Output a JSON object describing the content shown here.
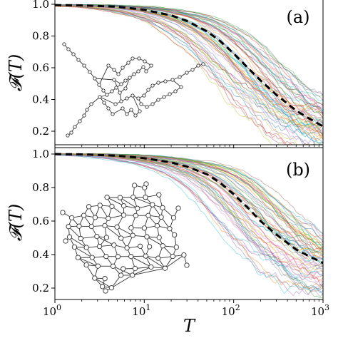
{
  "chart_data": [
    {
      "type": "line",
      "panel_label": "(a)",
      "xlabel": "",
      "ylabel": "𝓕(T)",
      "xscale": "log",
      "xlim": [
        1,
        1000
      ],
      "ylim": [
        0.12,
        1.02
      ],
      "yticks": [
        "0.2",
        "0.4",
        "0.6",
        "0.8",
        "1.0"
      ],
      "grid": false,
      "inset": "network graph (chain-like, sparse)",
      "series": [
        {
          "style": "black dashed mean curve",
          "x": [
            1,
            2,
            5,
            10,
            20,
            30,
            50,
            70,
            100,
            150,
            200,
            300,
            500,
            700,
            1000
          ],
          "y": [
            0.995,
            0.993,
            0.985,
            0.965,
            0.93,
            0.895,
            0.83,
            0.77,
            0.69,
            0.59,
            0.52,
            0.43,
            0.33,
            0.28,
            0.23
          ]
        }
      ],
      "ensemble": {
        "description": "many thin coloured trajectories around the mean",
        "count_shown": 60
      }
    },
    {
      "type": "line",
      "panel_label": "(b)",
      "xlabel": "T",
      "ylabel": "𝓕(T)",
      "xscale": "log",
      "xlim": [
        1,
        1000
      ],
      "ylim": [
        0.12,
        1.02
      ],
      "xticks": [
        "10^0",
        "10^1",
        "10^2",
        "10^3"
      ],
      "yticks": [
        "0.2",
        "0.4",
        "0.6",
        "0.8",
        "1.0"
      ],
      "grid": false,
      "inset": "network graph (mesh-like, dense)",
      "series": [
        {
          "style": "black dashed mean curve",
          "x": [
            1,
            2,
            5,
            10,
            20,
            30,
            50,
            70,
            100,
            150,
            200,
            300,
            500,
            700,
            1000
          ],
          "y": [
            1.0,
            0.998,
            0.99,
            0.975,
            0.95,
            0.925,
            0.88,
            0.83,
            0.76,
            0.67,
            0.6,
            0.52,
            0.43,
            0.39,
            0.35
          ]
        }
      ],
      "ensemble": {
        "description": "many thin coloured trajectories around the mean",
        "count_shown": 60
      }
    }
  ],
  "colors": {
    "palette": [
      "#1f77b4",
      "#ff7f0e",
      "#2ca02c",
      "#d62728",
      "#9467bd",
      "#8c564b",
      "#e377c2",
      "#7f7f7f",
      "#bcbd22",
      "#17becf"
    ],
    "mean": "#000000",
    "axes": "#000000"
  }
}
